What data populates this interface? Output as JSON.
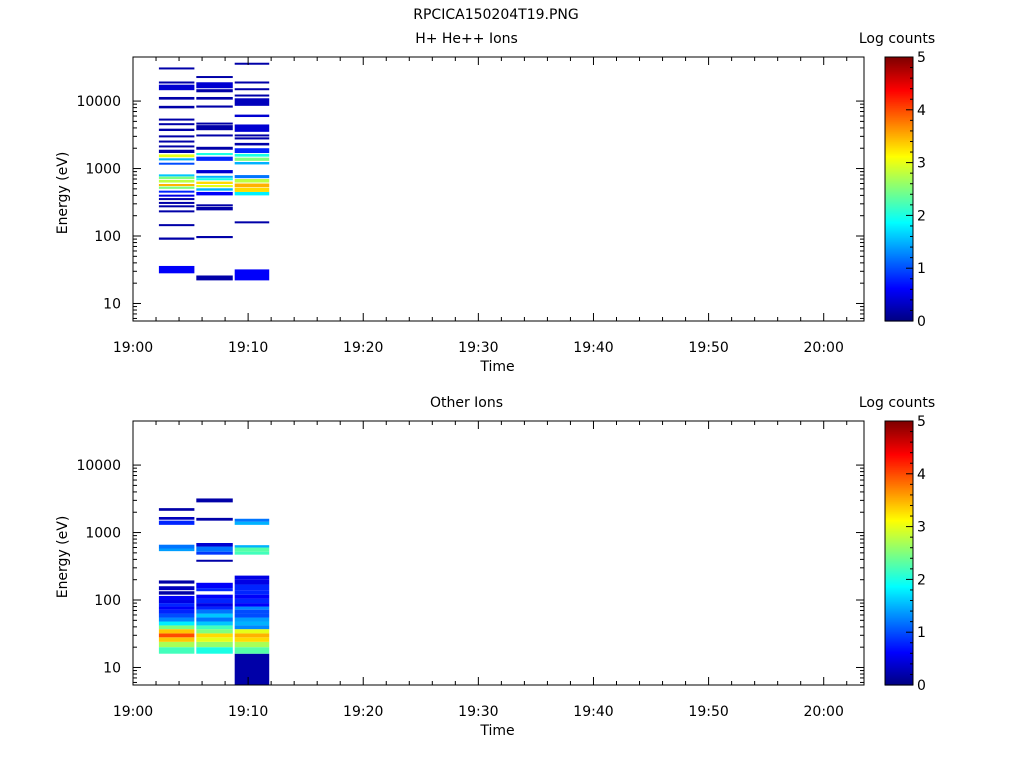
{
  "figure": {
    "title": "RPCICA150204T19.PNG"
  },
  "colormap": [
    "#00007f",
    "#0000ff",
    "#007fff",
    "#00ffff",
    "#7fff7f",
    "#ffff00",
    "#ff7f00",
    "#ff0000",
    "#7f0000"
  ],
  "chart_data": [
    {
      "type": "heatmap",
      "title": "H+ He++ Ions",
      "xlabel": "Time",
      "ylabel": "Energy (eV)",
      "colorbar_label": "Log counts",
      "colorbar_range": [
        0,
        5
      ],
      "colorbar_ticks": [
        "0",
        "1",
        "2",
        "3",
        "4",
        "5"
      ],
      "x_ticks": [
        "19:00",
        "19:10",
        "19:20",
        "19:30",
        "19:40",
        "19:50",
        "20:00"
      ],
      "xlim_minutes": [
        0,
        63.5
      ],
      "y_scale": "log",
      "y_ticks": [
        "10",
        "100",
        "1000",
        "10000"
      ],
      "ylim": [
        5.5,
        45000
      ],
      "time_bins": [
        {
          "start": "19:02:15",
          "end": "19:05:20",
          "cells": [
            [
              28,
              36,
              0.6
            ],
            [
              88,
              95,
              0.2
            ],
            [
              140,
              150,
              0.2
            ],
            [
              230,
              240,
              0.2
            ],
            [
              270,
              285,
              0.2
            ],
            [
              310,
              320,
              0.2
            ],
            [
              350,
              365,
              0.2
            ],
            [
              395,
              410,
              0.5
            ],
            [
              440,
              470,
              0.8
            ],
            [
              500,
              540,
              2.5
            ],
            [
              550,
              590,
              3.5
            ],
            [
              620,
              680,
              2.8
            ],
            [
              700,
              760,
              2.5
            ],
            [
              780,
              820,
              1.6
            ],
            [
              1150,
              1220,
              1.0
            ],
            [
              1320,
              1420,
              1.5
            ],
            [
              1470,
              1620,
              3.0
            ],
            [
              1700,
              1900,
              0.2
            ],
            [
              2100,
              2200,
              0.2
            ],
            [
              2500,
              2600,
              0.2
            ],
            [
              2900,
              3100,
              0.2
            ],
            [
              3600,
              3900,
              0.2
            ],
            [
              4500,
              4700,
              0.2
            ],
            [
              5200,
              5500,
              0.2
            ],
            [
              7800,
              8500,
              0.2
            ],
            [
              10500,
              11500,
              0.2
            ],
            [
              14500,
              17500,
              0.4
            ],
            [
              18500,
              19500,
              0.2
            ],
            [
              30000,
              31500,
              0.2
            ]
          ]
        },
        {
          "start": "19:05:30",
          "end": "19:08:40",
          "cells": [
            [
              22,
              26,
              0.2
            ],
            [
              93,
              100,
              0.2
            ],
            [
              240,
              270,
              0.2
            ],
            [
              280,
              295,
              0.2
            ],
            [
              400,
              450,
              0.6
            ],
            [
              470,
              510,
              1.5
            ],
            [
              530,
              570,
              3.0
            ],
            [
              590,
              640,
              3.3
            ],
            [
              670,
              720,
              2.0
            ],
            [
              740,
              780,
              1.5
            ],
            [
              850,
              950,
              0.4
            ],
            [
              1300,
              1500,
              0.8
            ],
            [
              1580,
              1700,
              2.0
            ],
            [
              1900,
              2100,
              0.2
            ],
            [
              3000,
              3200,
              0.2
            ],
            [
              3700,
              4400,
              0.2
            ],
            [
              4500,
              4800,
              0.2
            ],
            [
              8000,
              8600,
              0.2
            ],
            [
              10500,
              11500,
              0.2
            ],
            [
              13500,
              15000,
              0.2
            ],
            [
              15500,
              19000,
              0.4
            ],
            [
              22500,
              23500,
              0.2
            ]
          ]
        },
        {
          "start": "19:08:50",
          "end": "19:11:50",
          "cells": [
            [
              22,
              32,
              0.6
            ],
            [
              155,
              165,
              0.2
            ],
            [
              400,
              450,
              1.8
            ],
            [
              450,
              520,
              3.3
            ],
            [
              530,
              600,
              3.5
            ],
            [
              620,
              700,
              2.8
            ],
            [
              720,
              800,
              1.2
            ],
            [
              1150,
              1250,
              1.5
            ],
            [
              1300,
              1450,
              2.5
            ],
            [
              1500,
              1650,
              2.0
            ],
            [
              1700,
              2000,
              0.8
            ],
            [
              2200,
              2400,
              0.2
            ],
            [
              2700,
              2900,
              0.2
            ],
            [
              3000,
              3200,
              0.2
            ],
            [
              3500,
              4500,
              0.4
            ],
            [
              5800,
              6300,
              0.4
            ],
            [
              8500,
              11000,
              0.3
            ],
            [
              12000,
              12500,
              0.2
            ],
            [
              14500,
              15500,
              0.2
            ],
            [
              18500,
              19500,
              0.2
            ],
            [
              35000,
              37000,
              0.2
            ]
          ]
        }
      ]
    },
    {
      "type": "heatmap",
      "title": "Other Ions",
      "xlabel": "Time",
      "ylabel": "Energy (eV)",
      "colorbar_label": "Log counts",
      "colorbar_range": [
        0,
        5
      ],
      "colorbar_ticks": [
        "0",
        "1",
        "2",
        "3",
        "4",
        "5"
      ],
      "x_ticks": [
        "19:00",
        "19:10",
        "19:20",
        "19:30",
        "19:40",
        "19:50",
        "20:00"
      ],
      "xlim_minutes": [
        0,
        63.5
      ],
      "y_scale": "log",
      "y_ticks": [
        "10",
        "100",
        "1000",
        "10000"
      ],
      "ylim": [
        5.5,
        45000
      ],
      "time_bins": [
        {
          "start": "19:02:15",
          "end": "19:05:20",
          "cells": [
            [
              16,
              20,
              2.2
            ],
            [
              20,
              24,
              2.7
            ],
            [
              24,
              28,
              3.4
            ],
            [
              28,
              32,
              4.0
            ],
            [
              32,
              37,
              3.4
            ],
            [
              37,
              42,
              2.5
            ],
            [
              42,
              48,
              1.8
            ],
            [
              48,
              55,
              1.3
            ],
            [
              55,
              63,
              1.0
            ],
            [
              63,
              72,
              0.8
            ],
            [
              72,
              80,
              0.6
            ],
            [
              80,
              90,
              0.8
            ],
            [
              90,
              100,
              0.5
            ],
            [
              100,
              115,
              0.6
            ],
            [
              120,
              135,
              0.2
            ],
            [
              140,
              160,
              0.3
            ],
            [
              175,
              195,
              0.2
            ],
            [
              530,
              580,
              1.4
            ],
            [
              580,
              660,
              1.2
            ],
            [
              1300,
              1500,
              0.8
            ],
            [
              1550,
              1700,
              0.3
            ],
            [
              2100,
              2300,
              0.2
            ]
          ]
        },
        {
          "start": "19:05:30",
          "end": "19:08:40",
          "cells": [
            [
              16,
              20,
              2.0
            ],
            [
              20,
              24,
              2.6
            ],
            [
              24,
              28,
              3.0
            ],
            [
              28,
              32,
              3.3
            ],
            [
              32,
              37,
              2.5
            ],
            [
              37,
              42,
              2.2
            ],
            [
              42,
              48,
              1.6
            ],
            [
              48,
              55,
              1.2
            ],
            [
              55,
              63,
              1.6
            ],
            [
              63,
              72,
              1.2
            ],
            [
              72,
              80,
              0.8
            ],
            [
              80,
              90,
              0.5
            ],
            [
              90,
              105,
              0.8
            ],
            [
              105,
              120,
              0.6
            ],
            [
              135,
              150,
              0.8
            ],
            [
              150,
              180,
              0.6
            ],
            [
              370,
              395,
              0.2
            ],
            [
              470,
              520,
              0.9
            ],
            [
              520,
              620,
              1.2
            ],
            [
              620,
              700,
              0.4
            ],
            [
              1500,
              1650,
              0.2
            ],
            [
              2800,
              3200,
              0.2
            ]
          ]
        },
        {
          "start": "19:08:50",
          "end": "19:11:50",
          "cells": [
            [
              5.5,
              16,
              0.2
            ],
            [
              16,
              20,
              2.3
            ],
            [
              20,
              24,
              2.7
            ],
            [
              24,
              28,
              3.3
            ],
            [
              28,
              32,
              3.5
            ],
            [
              32,
              37,
              3.0
            ],
            [
              37,
              42,
              1.3
            ],
            [
              42,
              48,
              1.5
            ],
            [
              48,
              55,
              1.4
            ],
            [
              55,
              63,
              1.0
            ],
            [
              63,
              72,
              1.0
            ],
            [
              72,
              80,
              1.3
            ],
            [
              80,
              90,
              0.6
            ],
            [
              90,
              105,
              0.8
            ],
            [
              105,
              120,
              0.6
            ],
            [
              120,
              140,
              0.8
            ],
            [
              140,
              170,
              0.8
            ],
            [
              170,
              200,
              0.5
            ],
            [
              200,
              230,
              0.5
            ],
            [
              470,
              520,
              2.2
            ],
            [
              520,
              600,
              2.3
            ],
            [
              600,
              650,
              1.5
            ],
            [
              1300,
              1450,
              1.5
            ],
            [
              1450,
              1600,
              1.2
            ]
          ]
        }
      ]
    }
  ]
}
